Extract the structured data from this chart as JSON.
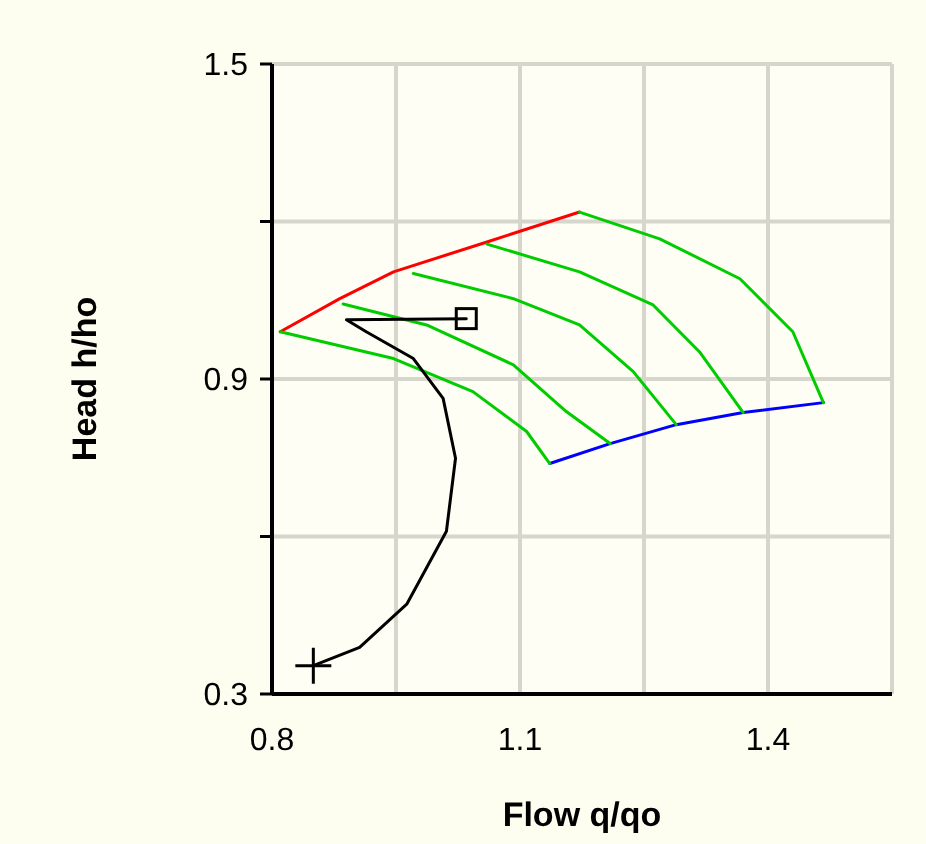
{
  "chart_data": {
    "type": "line",
    "xlabel": "Flow q/qo",
    "ylabel": "Head h/ho",
    "xlim": [
      0.8,
      1.55
    ],
    "ylim": [
      0.3,
      1.5
    ],
    "xticks": [
      0.8,
      {
        "value": 0.95,
        "label": null
      },
      1.1,
      {
        "value": 1.25,
        "label": null
      },
      1.4,
      {
        "value": 1.55,
        "label": null
      }
    ],
    "yticks": [
      0.3,
      {
        "value": 0.6,
        "label": null
      },
      0.9,
      {
        "value": 1.2,
        "label": null
      },
      1.5
    ],
    "grid": true,
    "marker": "none",
    "line_style": "solid",
    "series": [
      {
        "color": "#ff0000",
        "x": [
          0.81,
          0.882,
          0.947,
          1.06,
          1.172
        ],
        "values": [
          0.99,
          1.053,
          1.104,
          1.161,
          1.218
        ]
      },
      {
        "color": "#0000ff",
        "x": [
          1.136,
          1.209,
          1.289,
          1.37,
          1.467
        ],
        "values": [
          0.739,
          0.777,
          0.813,
          0.836,
          0.855
        ]
      },
      {
        "color": "#00cc00",
        "x": [
          0.81,
          0.947,
          1.043,
          1.108,
          1.136
        ],
        "values": [
          0.99,
          0.939,
          0.876,
          0.8,
          0.739
        ]
      },
      {
        "color": "#00cc00",
        "x": [
          0.886,
          0.987,
          1.092,
          1.156,
          1.209
        ],
        "values": [
          1.043,
          1.003,
          0.927,
          0.838,
          0.777
        ]
      },
      {
        "color": "#00cc00",
        "x": [
          0.971,
          1.092,
          1.172,
          1.237,
          1.289
        ],
        "values": [
          1.101,
          1.053,
          1.003,
          0.914,
          0.813
        ]
      },
      {
        "color": "#00cc00",
        "x": [
          1.06,
          1.172,
          1.261,
          1.317,
          1.37
        ],
        "values": [
          1.157,
          1.104,
          1.041,
          0.952,
          0.836
        ]
      },
      {
        "color": "#00cc00",
        "x": [
          1.172,
          1.269,
          1.366,
          1.43,
          1.467
        ],
        "values": [
          1.218,
          1.167,
          1.091,
          0.99,
          0.855
        ]
      },
      {
        "color": "#000000",
        "x": [
          1.035,
          0.89,
          0.914,
          0.971,
          1.007,
          1.022,
          1.011,
          0.963,
          0.906,
          0.85
        ],
        "values": [
          1.015,
          1.013,
          0.99,
          0.939,
          0.863,
          0.749,
          0.61,
          0.471,
          0.389,
          0.354
        ]
      },
      {
        "type": "scatter",
        "marker": "square",
        "color": "#000000",
        "x": [
          1.035
        ],
        "values": [
          1.015
        ]
      },
      {
        "type": "scatter",
        "marker": "cross",
        "color": "#000000",
        "x": [
          0.85
        ],
        "values": [
          0.354
        ]
      }
    ]
  }
}
